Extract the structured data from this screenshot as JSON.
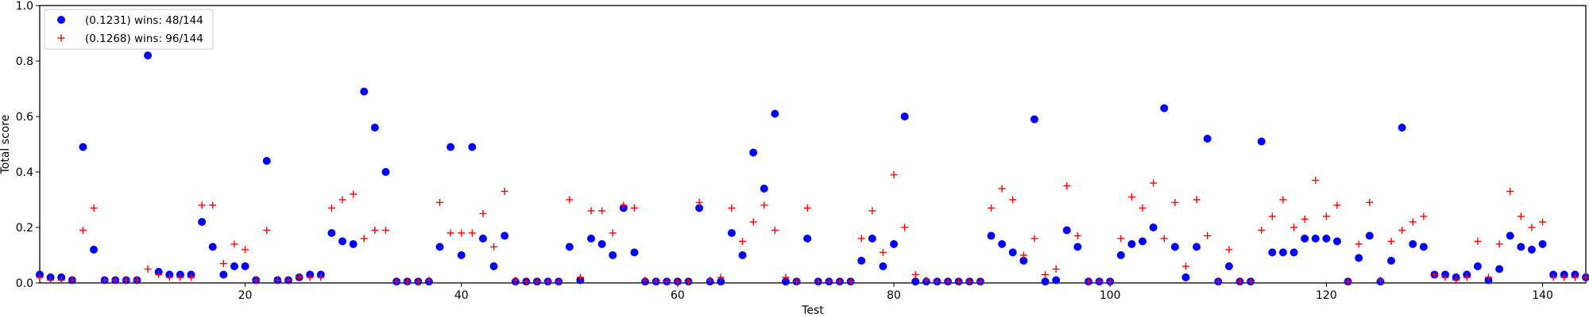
{
  "chart_data": {
    "type": "scatter",
    "xlabel": "Test",
    "ylabel": "Total score",
    "xlim": [
      1,
      144
    ],
    "ylim": [
      0,
      1.0
    ],
    "xticks": [
      20,
      40,
      60,
      80,
      100,
      120,
      140
    ],
    "yticks": [
      0.0,
      0.2,
      0.4,
      0.6,
      0.8,
      1.0
    ],
    "ytick_labels": [
      "0.0",
      "0.2",
      "0.4",
      "0.6",
      "0.8",
      "1.0"
    ],
    "legend_position": "upper-left",
    "series": [
      {
        "name": "(0.1231) wins: 48/144",
        "marker": "circle",
        "color": "#0000ff",
        "values": [
          0.03,
          0.02,
          0.02,
          0.01,
          0.49,
          0.12,
          0.01,
          0.01,
          0.01,
          0.01,
          0.82,
          0.04,
          0.03,
          0.03,
          0.03,
          0.22,
          0.13,
          0.03,
          0.06,
          0.06,
          0.01,
          0.44,
          0.01,
          0.01,
          0.02,
          0.03,
          0.03,
          0.18,
          0.15,
          0.14,
          0.69,
          0.56,
          0.4,
          0.005,
          0.005,
          0.005,
          0.005,
          0.13,
          0.49,
          0.1,
          0.49,
          0.16,
          0.06,
          0.17,
          0.005,
          0.005,
          0.005,
          0.005,
          0.005,
          0.13,
          0.01,
          0.16,
          0.14,
          0.1,
          0.27,
          0.11,
          0.005,
          0.005,
          0.005,
          0.005,
          0.005,
          0.27,
          0.005,
          0.005,
          0.18,
          0.1,
          0.47,
          0.34,
          0.61,
          0.005,
          0.005,
          0.16,
          0.005,
          0.005,
          0.005,
          0.005,
          0.08,
          0.16,
          0.06,
          0.14,
          0.6,
          0.005,
          0.005,
          0.005,
          0.005,
          0.005,
          0.005,
          0.005,
          0.17,
          0.14,
          0.11,
          0.08,
          0.59,
          0.005,
          0.01,
          0.19,
          0.13,
          0.005,
          0.005,
          0.005,
          0.1,
          0.14,
          0.15,
          0.2,
          0.63,
          0.13,
          0.02,
          0.13,
          0.52,
          0.005,
          0.06,
          0.005,
          0.005,
          0.51,
          0.11,
          0.11,
          0.11,
          0.16,
          0.16,
          0.16,
          0.15,
          0.005,
          0.09,
          0.17,
          0.005,
          0.08,
          0.56,
          0.14,
          0.13,
          0.03,
          0.03,
          0.02,
          0.03,
          0.06,
          0.01,
          0.05,
          0.17,
          0.13,
          0.12,
          0.14,
          0.03,
          0.03,
          0.03,
          0.02
        ]
      },
      {
        "name": "(0.1268) wins: 96/144",
        "marker": "plus",
        "color": "#ff0000",
        "values": [
          0.02,
          0.01,
          0.01,
          0.01,
          0.19,
          0.27,
          0.01,
          0.01,
          0.01,
          0.01,
          0.05,
          0.03,
          0.02,
          0.02,
          0.02,
          0.28,
          0.28,
          0.07,
          0.14,
          0.12,
          0.01,
          0.19,
          0.01,
          0.01,
          0.02,
          0.02,
          0.02,
          0.27,
          0.3,
          0.32,
          0.16,
          0.19,
          0.19,
          0.005,
          0.005,
          0.005,
          0.01,
          0.29,
          0.18,
          0.18,
          0.18,
          0.25,
          0.13,
          0.33,
          0.01,
          0.005,
          0.005,
          0.005,
          0.005,
          0.3,
          0.02,
          0.26,
          0.26,
          0.18,
          0.28,
          0.27,
          0.01,
          0.005,
          0.005,
          0.005,
          0.005,
          0.29,
          0.01,
          0.02,
          0.27,
          0.15,
          0.22,
          0.28,
          0.19,
          0.02,
          0.005,
          0.27,
          0.005,
          0.005,
          0.005,
          0.005,
          0.16,
          0.26,
          0.11,
          0.39,
          0.2,
          0.03,
          0.01,
          0.005,
          0.005,
          0.005,
          0.005,
          0.005,
          0.27,
          0.34,
          0.3,
          0.1,
          0.16,
          0.03,
          0.05,
          0.35,
          0.17,
          0.005,
          0.005,
          0.005,
          0.16,
          0.31,
          0.27,
          0.36,
          0.16,
          0.29,
          0.06,
          0.3,
          0.17,
          0.005,
          0.12,
          0.005,
          0.005,
          0.19,
          0.24,
          0.3,
          0.2,
          0.23,
          0.37,
          0.24,
          0.28,
          0.005,
          0.14,
          0.29,
          0.01,
          0.15,
          0.19,
          0.22,
          0.24,
          0.03,
          0.02,
          0.01,
          0.02,
          0.15,
          0.02,
          0.14,
          0.33,
          0.24,
          0.2,
          0.22,
          0.02,
          0.02,
          0.02,
          0.02
        ]
      }
    ]
  }
}
